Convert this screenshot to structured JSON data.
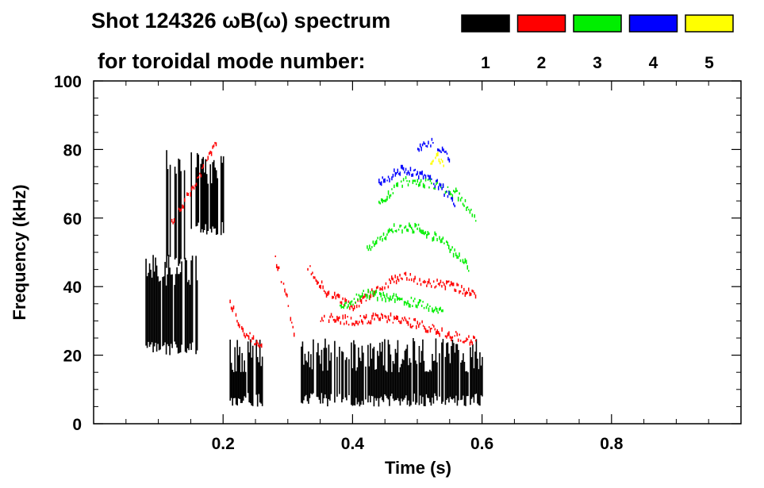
{
  "chart_data": {
    "type": "heatmap",
    "title": "Shot 124326 ωB(ω) spectrum",
    "legend_title": "for toroidal mode number:",
    "legend_placement": "top-right",
    "legend": [
      {
        "label": "1",
        "color": "#000000"
      },
      {
        "label": "2",
        "color": "#ff0000"
      },
      {
        "label": "3",
        "color": "#00ee00"
      },
      {
        "label": "4",
        "color": "#0000ff"
      },
      {
        "label": "5",
        "color": "#ffff00"
      }
    ],
    "xlabel": "Time (s)",
    "ylabel": "Frequency (kHz)",
    "xlim": [
      0,
      1.0
    ],
    "ylim": [
      0,
      100
    ],
    "xticks": [
      0.2,
      0.4,
      0.6,
      0.8
    ],
    "yticks": [
      0,
      20,
      40,
      60,
      80,
      100
    ],
    "series": [
      {
        "name": "n=1",
        "color": "#000000",
        "features": [
          {
            "t0": 0.08,
            "t1": 0.16,
            "f_low": 20,
            "f_high": 50
          },
          {
            "t0": 0.11,
            "t1": 0.14,
            "f_low": 45,
            "f_high": 80
          },
          {
            "t0": 0.15,
            "t1": 0.2,
            "f_low": 55,
            "f_high": 80
          },
          {
            "t0": 0.21,
            "t1": 0.26,
            "f_low": 5,
            "f_high": 25
          },
          {
            "t0": 0.32,
            "t1": 0.6,
            "f_low": 5,
            "f_high": 25
          }
        ]
      },
      {
        "name": "n=2",
        "color": "#ff0000",
        "lines": [
          {
            "t": [
              0.12,
              0.15,
              0.17,
              0.19
            ],
            "f": [
              58,
              68,
              75,
              82
            ]
          },
          {
            "t": [
              0.21,
              0.23,
              0.26
            ],
            "f": [
              35,
              27,
              22
            ]
          },
          {
            "t": [
              0.28,
              0.3,
              0.31
            ],
            "f": [
              48,
              35,
              25
            ]
          },
          {
            "t": [
              0.33,
              0.36,
              0.4,
              0.44,
              0.48,
              0.52,
              0.56,
              0.59
            ],
            "f": [
              46,
              38,
              34,
              40,
              43,
              41,
              40,
              37
            ]
          },
          {
            "t": [
              0.35,
              0.4,
              0.45,
              0.5,
              0.55,
              0.59
            ],
            "f": [
              31,
              30,
              31,
              29,
              26,
              24
            ]
          }
        ]
      },
      {
        "name": "n=3",
        "color": "#00ee00",
        "lines": [
          {
            "t": [
              0.42,
              0.46,
              0.5,
              0.54,
              0.58
            ],
            "f": [
              50,
              57,
              57,
              53,
              45
            ]
          },
          {
            "t": [
              0.44,
              0.48,
              0.52,
              0.56,
              0.59
            ],
            "f": [
              64,
              71,
              70,
              67,
              60
            ]
          },
          {
            "t": [
              0.38,
              0.42,
              0.46,
              0.5,
              0.54
            ],
            "f": [
              34,
              38,
              37,
              35,
              33
            ]
          }
        ]
      },
      {
        "name": "n=4",
        "color": "#0000ff",
        "lines": [
          {
            "t": [
              0.44,
              0.47,
              0.5,
              0.53,
              0.56
            ],
            "f": [
              70,
              74,
              73,
              70,
              64
            ]
          },
          {
            "t": [
              0.5,
              0.52,
              0.54,
              0.55
            ],
            "f": [
              80,
              82,
              80,
              77
            ]
          }
        ]
      },
      {
        "name": "n=5",
        "color": "#ffff00",
        "lines": [
          {
            "t": [
              0.52,
              0.53,
              0.54
            ],
            "f": [
              77,
              78,
              76
            ]
          }
        ]
      }
    ]
  }
}
